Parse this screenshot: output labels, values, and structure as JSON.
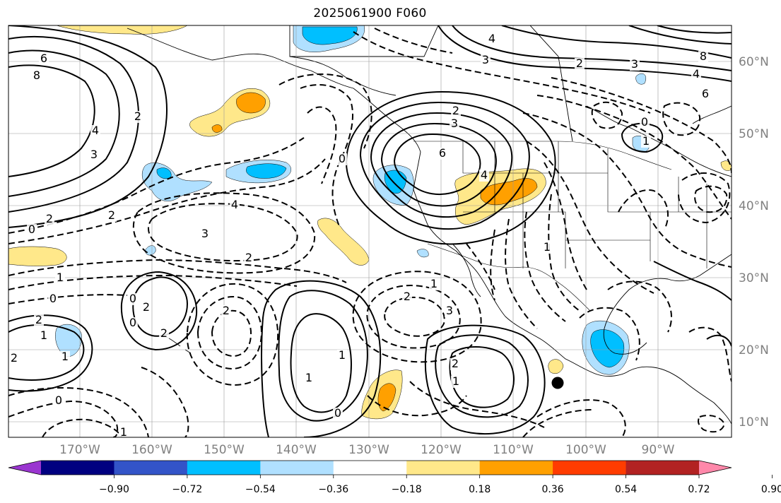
{
  "title": "2025061900 F060",
  "map": {
    "lat_labels": [
      "60°N",
      "50°N",
      "40°N",
      "30°N",
      "20°N",
      "10°N"
    ],
    "lon_labels": [
      "170°W",
      "160°W",
      "150°W",
      "140°W",
      "130°W",
      "120°W",
      "110°W",
      "100°W",
      "90°W"
    ],
    "contour_labels": [
      "6",
      "8",
      "4",
      "3",
      "2",
      "0",
      "2",
      "2",
      "4",
      "3",
      "2",
      "1",
      "0",
      "2",
      "1",
      "2",
      "1",
      "2",
      "0",
      "2",
      "1",
      "0",
      "1",
      "2",
      "3",
      "6",
      "4",
      "2",
      "3",
      "4",
      "8",
      "6",
      "4",
      "3",
      "2",
      "0",
      "1",
      "0",
      "0",
      "2",
      "3",
      "1",
      "2",
      "1",
      "1",
      "0",
      "1",
      "2",
      "1",
      "1",
      "0",
      "0",
      "1"
    ],
    "marker": "storm-center-dot"
  },
  "colorbar": {
    "ticks": [
      "−0.90",
      "−0.72",
      "−0.54",
      "−0.36",
      "−0.18",
      "0.18",
      "0.36",
      "0.54",
      "0.72",
      "0.90"
    ],
    "colors": [
      "#9a35d0",
      "#000080",
      "#3354c8",
      "#00bfff",
      "#b0e0ff",
      "#ffffff",
      "#ffe88a",
      "#ffa000",
      "#ff3c00",
      "#b22222",
      "#ff88aa"
    ]
  }
}
